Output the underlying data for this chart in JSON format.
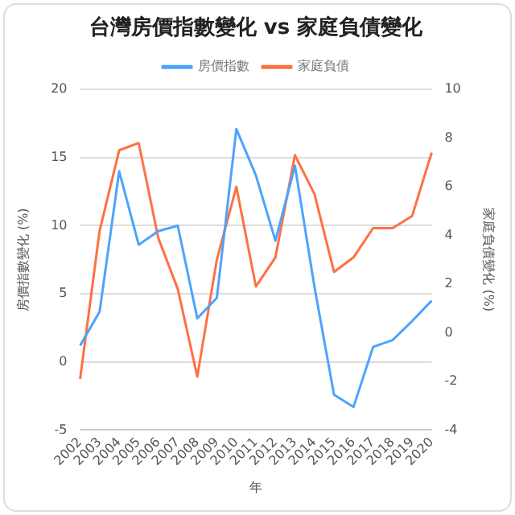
{
  "chart_data": {
    "type": "line",
    "title": "台灣房價指數變化 vs 家庭負債變化",
    "xlabel": "年",
    "ylabel": "房價指數變化 (%)",
    "y2label": "家庭負債變化 (%)",
    "categories": [
      "2002",
      "2003",
      "2004",
      "2005",
      "2006",
      "2007",
      "2008",
      "2009",
      "2010",
      "2011",
      "2012",
      "2013",
      "2014",
      "2015",
      "2016",
      "2017",
      "2018",
      "2019",
      "2020"
    ],
    "series": [
      {
        "name": "房價指數",
        "color": "#4da3ff",
        "values": [
          1.2,
          3.7,
          14.0,
          8.6,
          9.6,
          10.0,
          3.2,
          4.7,
          17.1,
          13.7,
          8.9,
          14.4,
          5.5,
          -2.4,
          -3.3,
          1.1,
          1.6,
          3.0,
          4.5
        ]
      },
      {
        "name": "家庭負債",
        "color": "#ff7043",
        "axis": "y2",
        "values": [
          -1.9,
          4.2,
          7.5,
          7.8,
          3.9,
          1.8,
          -1.8,
          3.0,
          6.0,
          1.9,
          3.1,
          7.3,
          5.7,
          2.5,
          3.1,
          4.3,
          4.3,
          4.8,
          7.4
        ]
      }
    ],
    "ylim": [
      -5,
      20
    ],
    "yticks": [
      -5,
      0,
      5,
      10,
      15,
      20
    ],
    "y2lim": [
      -4,
      10
    ],
    "y2ticks": [
      -4,
      -2,
      0,
      2,
      4,
      6,
      8,
      10
    ],
    "grid": "y",
    "legend": "top",
    "marker": "none",
    "line_style": "solid"
  }
}
